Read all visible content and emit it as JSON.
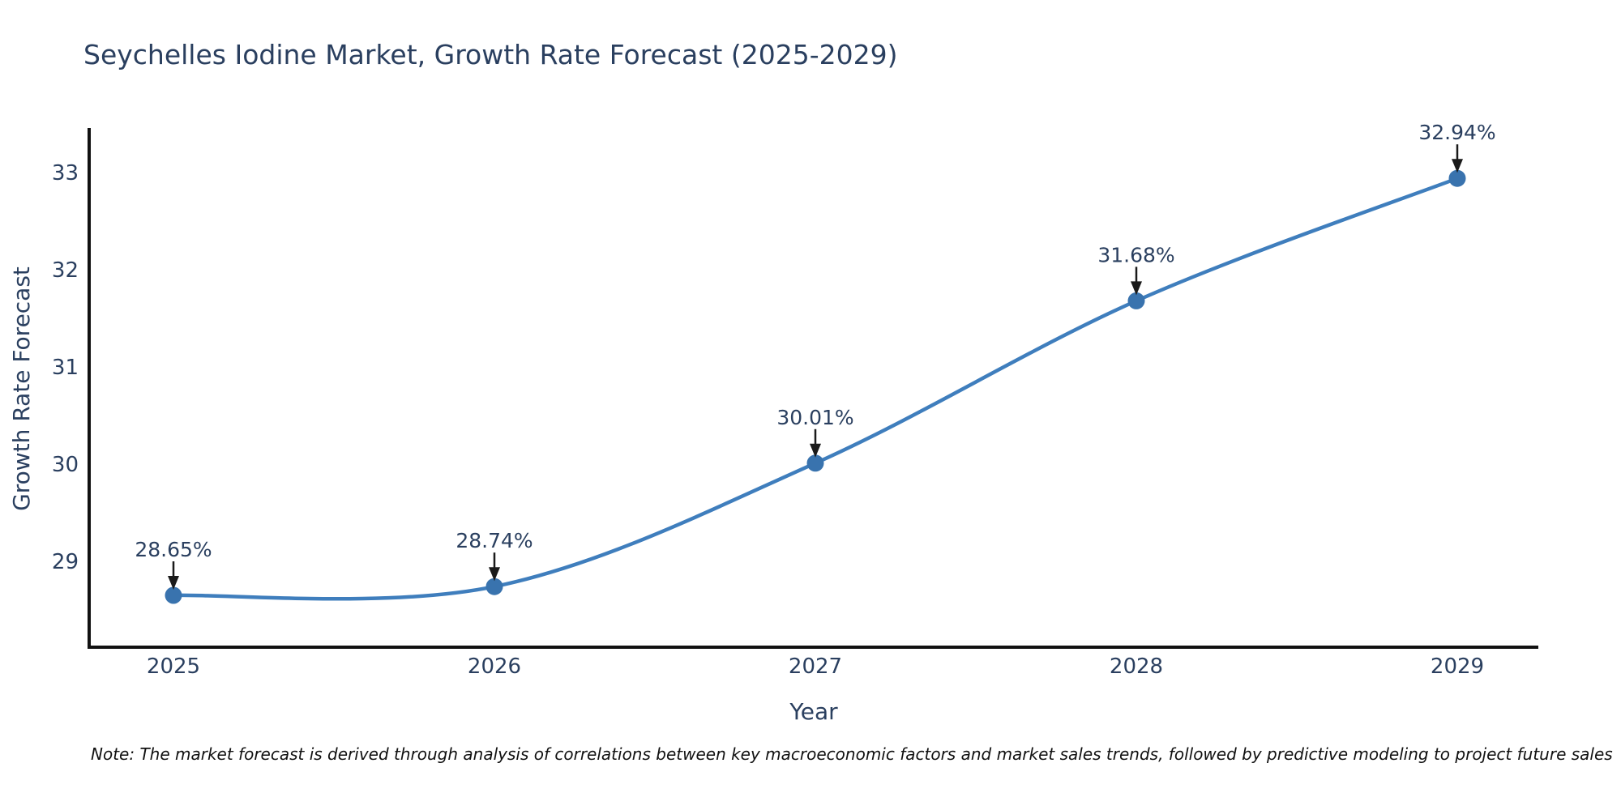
{
  "title": "Seychelles Iodine Market, Growth Rate Forecast (2025-2029)",
  "note": "Note: The market forecast is derived through analysis of correlations between key macroeconomic factors and market sales trends, followed by predictive modeling to project future sales",
  "chart_data": {
    "type": "line",
    "title": "Seychelles Iodine Market, Growth Rate Forecast (2025-2029)",
    "xlabel": "Year",
    "ylabel": "Growth Rate Forecast",
    "x": [
      2025,
      2026,
      2027,
      2028,
      2029
    ],
    "series": [
      {
        "name": "Growth Rate Forecast",
        "values": [
          28.65,
          28.74,
          30.01,
          31.68,
          32.94
        ]
      }
    ],
    "point_labels": [
      "28.65%",
      "28.74%",
      "30.01%",
      "31.68%",
      "32.94%"
    ],
    "x_ticks": [
      "2025",
      "2026",
      "2027",
      "2028",
      "2029"
    ],
    "y_ticks": [
      29,
      30,
      31,
      32,
      33
    ],
    "xlim": [
      2024.74,
      2029.25
    ],
    "ylim": [
      28.12,
      33.44
    ],
    "line_shape": "spline",
    "grid": false,
    "legend": "none",
    "colors": {
      "line": "#3f7ebd",
      "marker": "#3973ae",
      "axis": "#111111",
      "text": "#2a3f5f",
      "arrow": "#1a1a1a",
      "note_text": "#111111",
      "background": "#ffffff"
    }
  }
}
